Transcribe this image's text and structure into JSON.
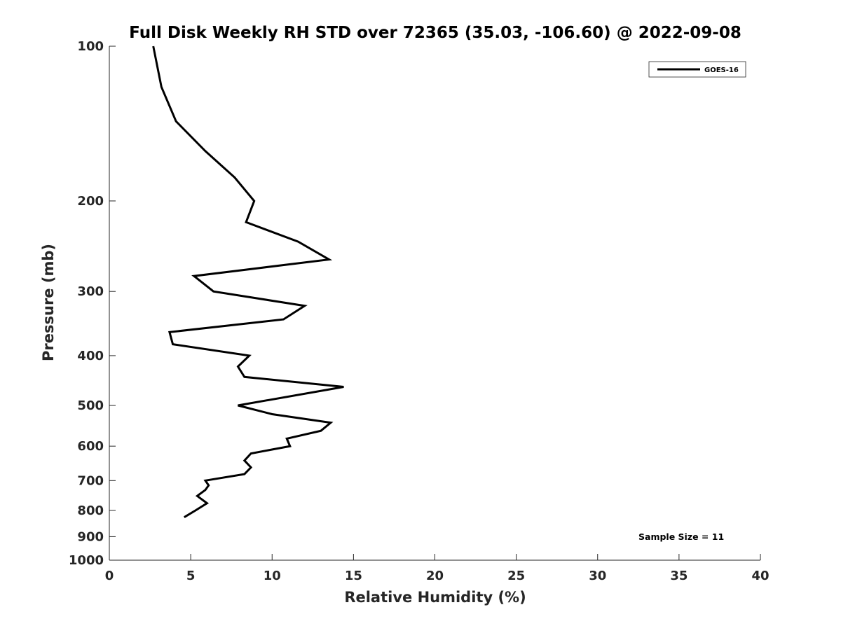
{
  "chart_data": {
    "type": "line",
    "title": "Full Disk Weekly RH STD over 72365 (35.03, -106.60) @ 2022-09-08",
    "xlabel": "Relative Humidity (%)",
    "ylabel": "Pressure (mb)",
    "xlim": [
      0,
      40
    ],
    "ylim": [
      100,
      1000
    ],
    "y_scale": "log",
    "y_inverted": true,
    "x_ticks": [
      0,
      5,
      10,
      15,
      20,
      25,
      30,
      35,
      40
    ],
    "x_tick_labels": [
      "0",
      "5",
      "10",
      "15",
      "20",
      "25",
      "30",
      "35",
      "40"
    ],
    "y_ticks": [
      100,
      200,
      300,
      400,
      500,
      600,
      700,
      800,
      900,
      1000
    ],
    "y_tick_labels": [
      "100",
      "200",
      "300",
      "400",
      "500",
      "600",
      "700",
      "800",
      "900",
      "1000"
    ],
    "grid": false,
    "legend": {
      "placement": "top-right",
      "entries": [
        "GOES-16"
      ]
    },
    "annotation": "Sample Size = 11",
    "series": [
      {
        "name": "GOES-16",
        "color": "#000000",
        "x": [
          2.7,
          3.2,
          4.1,
          5.9,
          7.7,
          8.9,
          8.4,
          11.6,
          13.5,
          5.2,
          6.4,
          12.0,
          10.7,
          3.7,
          3.9,
          8.6,
          7.9,
          8.3,
          14.4,
          7.9,
          10.0,
          13.6,
          13.0,
          10.9,
          11.1,
          8.7,
          8.3,
          8.7,
          8.3,
          5.9,
          6.1,
          5.9,
          5.4,
          6.0,
          5.3,
          4.6
        ],
        "y": [
          100,
          120,
          140,
          160,
          180,
          200,
          220,
          240,
          260,
          280,
          300,
          320,
          340,
          360,
          380,
          400,
          420,
          440,
          460,
          500,
          520,
          540,
          560,
          580,
          600,
          620,
          640,
          660,
          680,
          700,
          715,
          730,
          750,
          775,
          800,
          825
        ]
      }
    ]
  }
}
